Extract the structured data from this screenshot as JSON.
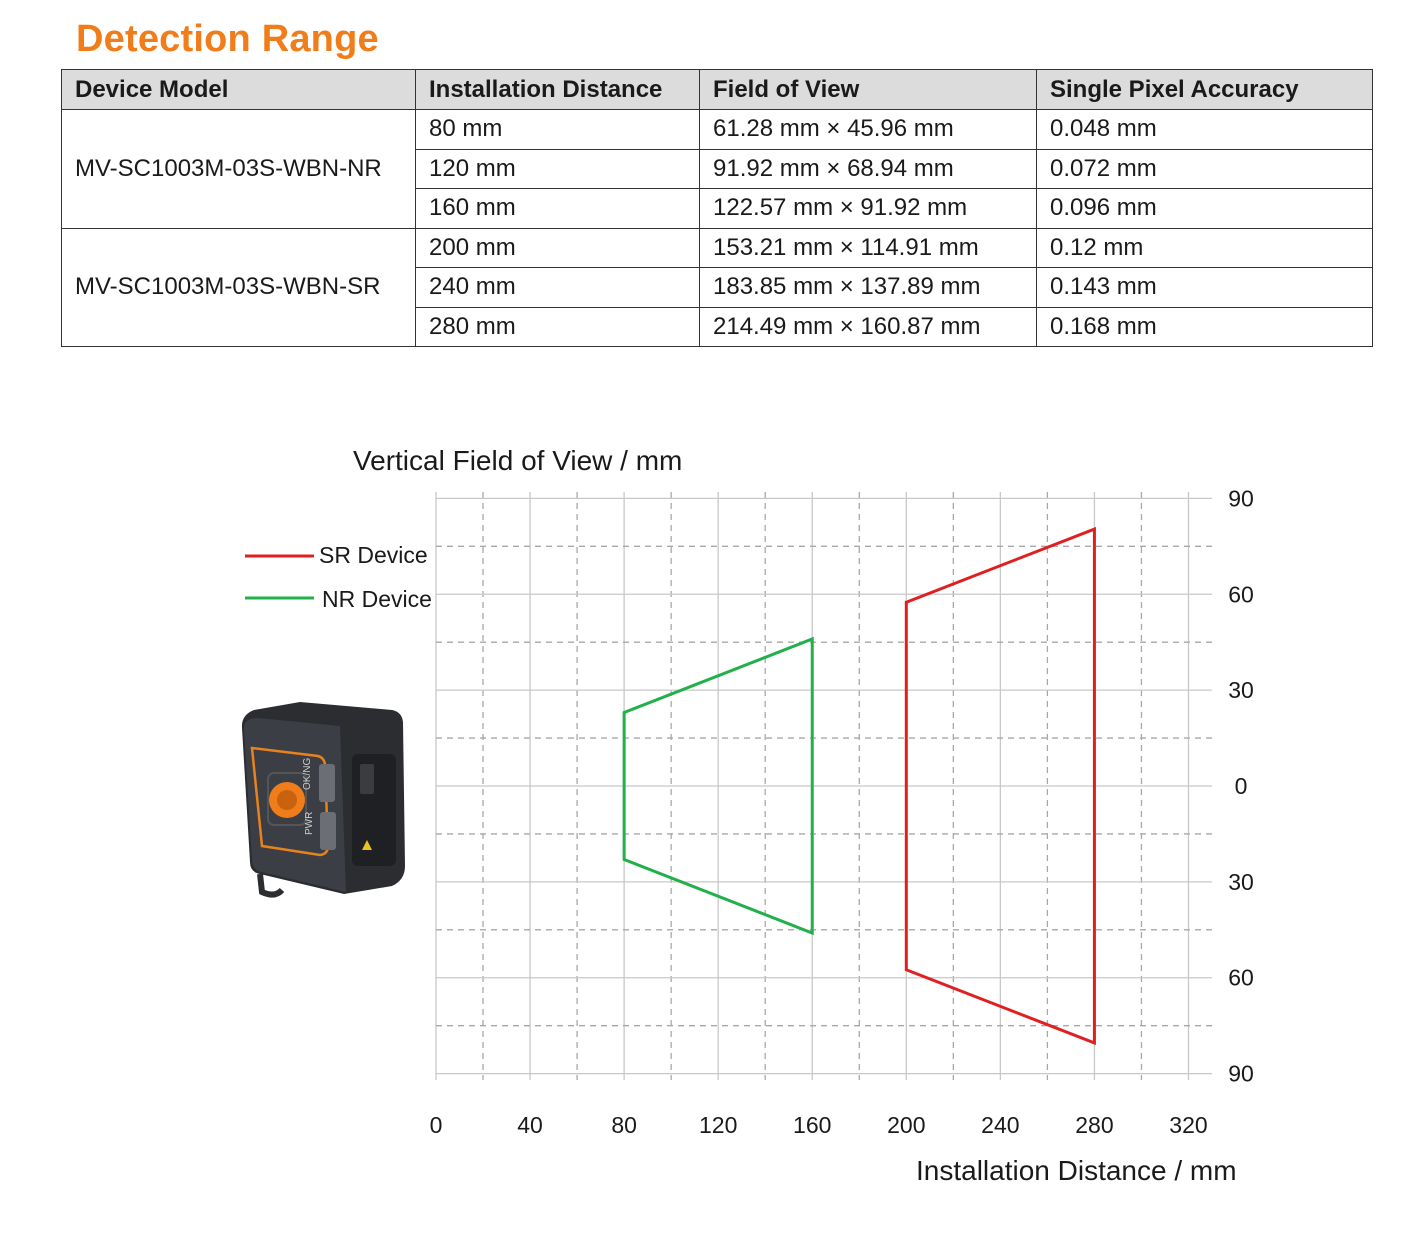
{
  "page_title": "Detection Range",
  "table": {
    "headers": [
      "Device Model",
      "Installation Distance",
      "Field of View",
      "Single Pixel Accuracy"
    ],
    "groups": [
      {
        "model": "MV-SC1003M-03S-WBN-NR",
        "rows": [
          {
            "distance": "80 mm",
            "fov": "61.28 mm × 45.96 mm",
            "accuracy": "0.048 mm"
          },
          {
            "distance": "120 mm",
            "fov": "91.92 mm × 68.94 mm",
            "accuracy": "0.072 mm"
          },
          {
            "distance": "160 mm",
            "fov": "122.57 mm × 91.92 mm",
            "accuracy": "0.096 mm"
          }
        ]
      },
      {
        "model": "MV-SC1003M-03S-WBN-SR",
        "rows": [
          {
            "distance": "200 mm",
            "fov": "153.21 mm × 114.91 mm",
            "accuracy": "0.12 mm"
          },
          {
            "distance": "240 mm",
            "fov": "183.85 mm × 137.89 mm",
            "accuracy": "0.143 mm"
          },
          {
            "distance": "280 mm",
            "fov": "214.49 mm × 160.87 mm",
            "accuracy": "0.168 mm"
          }
        ]
      }
    ]
  },
  "chart_data": {
    "type": "line",
    "title": "",
    "ylabel": "Vertical Field of View / mm",
    "xlabel": "Installation Distance / mm",
    "xlim": [
      0,
      330
    ],
    "ylim": [
      -92,
      92
    ],
    "x_ticks": [
      0,
      40,
      80,
      120,
      160,
      200,
      240,
      280,
      320
    ],
    "y_ticks": [
      {
        "value": 90,
        "label": "90"
      },
      {
        "value": 60,
        "label": "60"
      },
      {
        "value": 30,
        "label": "30"
      },
      {
        "value": 0,
        "label": "0"
      },
      {
        "value": -30,
        "label": "30"
      },
      {
        "value": -60,
        "label": "60"
      },
      {
        "value": -90,
        "label": "90"
      }
    ],
    "grid": true,
    "legend_position": "left",
    "series": [
      {
        "name": "SR Device",
        "color": "#e02020",
        "points": [
          [
            200,
            57.5
          ],
          [
            280,
            80.4
          ],
          [
            280,
            -80.4
          ],
          [
            200,
            -57.5
          ]
        ]
      },
      {
        "name": "NR Device",
        "color": "#22b04a",
        "points": [
          [
            80,
            23.0
          ],
          [
            160,
            46.0
          ],
          [
            160,
            -46.0
          ],
          [
            80,
            -23.0
          ]
        ]
      }
    ],
    "device_image": {
      "icon": "smart-code-reader-device",
      "labels": [
        "OK/NG",
        "PWR"
      ]
    }
  }
}
